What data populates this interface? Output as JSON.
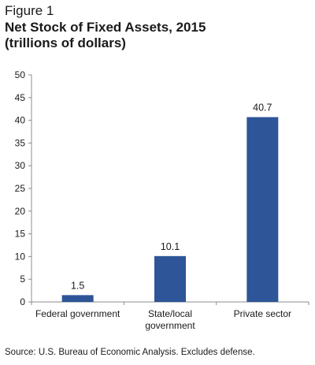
{
  "figure": {
    "label": "Figure 1",
    "title": "Net Stock of Fixed Assets, 2015",
    "unit": "(trillions of dollars)"
  },
  "source": "Source: U.S. Bureau of Economic Analysis. Excludes defense.",
  "colors": {
    "bar": "#2e5597",
    "axis": "#8c8c8c"
  },
  "chart_data": {
    "type": "bar",
    "title": "Net Stock of Fixed Assets, 2015",
    "xlabel": "",
    "ylabel": "",
    "categories": [
      [
        "Federal government"
      ],
      [
        "State/local",
        "government"
      ],
      [
        "Private sector"
      ]
    ],
    "values": [
      1.5,
      10.1,
      40.7
    ],
    "value_labels": [
      "1.5",
      "10.1",
      "40.7"
    ],
    "ylim": [
      0,
      50
    ],
    "yticks": [
      0,
      5,
      10,
      15,
      20,
      25,
      30,
      35,
      40,
      45,
      50
    ],
    "grid": false,
    "legend": "none"
  }
}
